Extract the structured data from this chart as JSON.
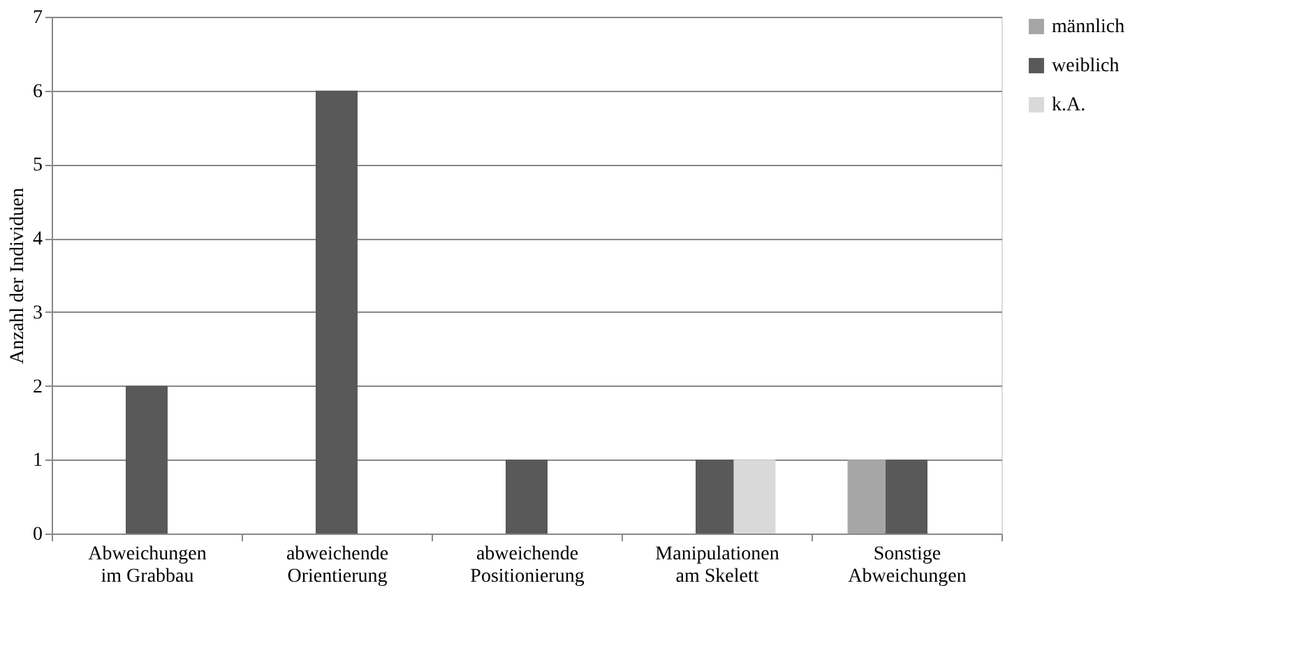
{
  "chart_data": {
    "type": "bar",
    "ylabel": "Anzahl der Individuen",
    "categories": [
      "Abweichungen im Grabbau",
      "abweichende Orientierung",
      "abweichende Positionierung",
      "Manipulationen am Skelett",
      "Sonstige Abweichungen"
    ],
    "series": [
      {
        "name": "männlich",
        "color": "#a6a6a6",
        "values": [
          null,
          null,
          null,
          null,
          1
        ]
      },
      {
        "name": "weiblich",
        "color": "#595959",
        "values": [
          2,
          6,
          1,
          1,
          1
        ]
      },
      {
        "name": "k.A.",
        "color": "#d9d9d9",
        "values": [
          null,
          null,
          null,
          1,
          null
        ]
      }
    ],
    "ylim": [
      0,
      7
    ],
    "yticks": [
      0,
      1,
      2,
      3,
      4,
      5,
      6,
      7
    ],
    "grid": "y",
    "legend": "right"
  }
}
